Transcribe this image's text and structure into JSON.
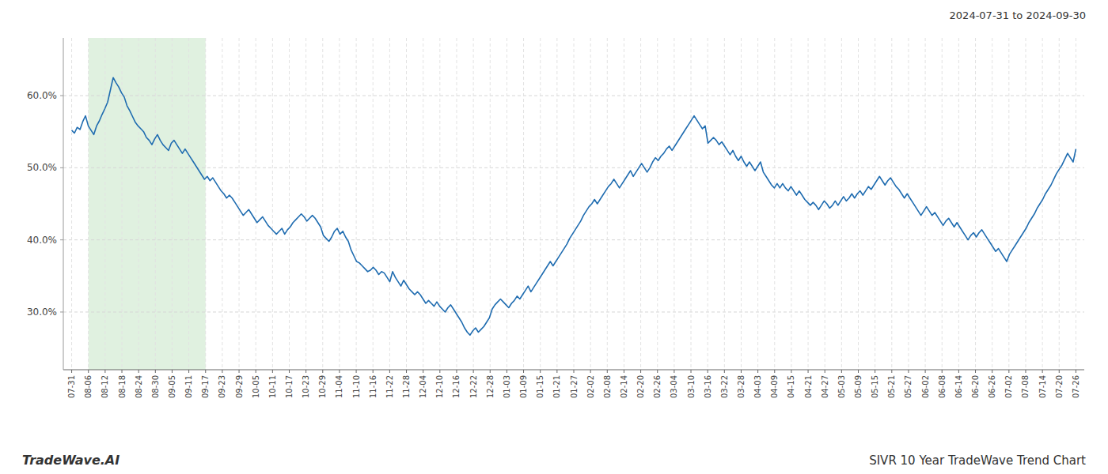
{
  "chart_data": {
    "type": "line",
    "title": "SIVR 10 Year TradeWave Trend Chart",
    "subtitle": "2024-07-31 to 2024-09-30",
    "annotations": [
      "TradeWave.AI"
    ],
    "color": "#1f6cb0",
    "grid": true,
    "shade": {
      "start": "08-06",
      "end": "09-17",
      "color": "#cce8cc"
    },
    "xlim": [
      -0.5,
      60.5
    ],
    "xticks": [
      {
        "value": 0,
        "label": "07-31"
      },
      {
        "value": 1,
        "label": "08-06"
      },
      {
        "value": 2,
        "label": "08-12"
      },
      {
        "value": 3,
        "label": "08-18"
      },
      {
        "value": 4,
        "label": "08-24"
      },
      {
        "value": 5,
        "label": "08-30"
      },
      {
        "value": 6,
        "label": "09-05"
      },
      {
        "value": 7,
        "label": "09-11"
      },
      {
        "value": 8,
        "label": "09-17"
      },
      {
        "value": 9,
        "label": "09-23"
      },
      {
        "value": 10,
        "label": "09-29"
      },
      {
        "value": 11,
        "label": "10-05"
      },
      {
        "value": 12,
        "label": "10-11"
      },
      {
        "value": 13,
        "label": "10-17"
      },
      {
        "value": 14,
        "label": "10-23"
      },
      {
        "value": 15,
        "label": "10-29"
      },
      {
        "value": 16,
        "label": "11-04"
      },
      {
        "value": 17,
        "label": "11-10"
      },
      {
        "value": 18,
        "label": "11-16"
      },
      {
        "value": 19,
        "label": "11-22"
      },
      {
        "value": 20,
        "label": "11-28"
      },
      {
        "value": 21,
        "label": "12-04"
      },
      {
        "value": 22,
        "label": "12-10"
      },
      {
        "value": 23,
        "label": "12-16"
      },
      {
        "value": 24,
        "label": "12-22"
      },
      {
        "value": 25,
        "label": "12-28"
      },
      {
        "value": 26,
        "label": "01-03"
      },
      {
        "value": 27,
        "label": "01-09"
      },
      {
        "value": 28,
        "label": "01-15"
      },
      {
        "value": 29,
        "label": "01-21"
      },
      {
        "value": 30,
        "label": "01-27"
      },
      {
        "value": 31,
        "label": "02-02"
      },
      {
        "value": 32,
        "label": "02-08"
      },
      {
        "value": 33,
        "label": "02-14"
      },
      {
        "value": 34,
        "label": "02-20"
      },
      {
        "value": 35,
        "label": "02-26"
      },
      {
        "value": 36,
        "label": "03-04"
      },
      {
        "value": 37,
        "label": "03-10"
      },
      {
        "value": 38,
        "label": "03-16"
      },
      {
        "value": 39,
        "label": "03-22"
      },
      {
        "value": 40,
        "label": "03-28"
      },
      {
        "value": 41,
        "label": "04-03"
      },
      {
        "value": 42,
        "label": "04-09"
      },
      {
        "value": 43,
        "label": "04-15"
      },
      {
        "value": 44,
        "label": "04-21"
      },
      {
        "value": 45,
        "label": "04-27"
      },
      {
        "value": 46,
        "label": "05-03"
      },
      {
        "value": 47,
        "label": "05-09"
      },
      {
        "value": 48,
        "label": "05-15"
      },
      {
        "value": 49,
        "label": "05-21"
      },
      {
        "value": 50,
        "label": "05-27"
      },
      {
        "value": 51,
        "label": "06-02"
      },
      {
        "value": 52,
        "label": "06-08"
      },
      {
        "value": 53,
        "label": "06-14"
      },
      {
        "value": 54,
        "label": "06-20"
      },
      {
        "value": 55,
        "label": "06-26"
      },
      {
        "value": 56,
        "label": "07-02"
      },
      {
        "value": 57,
        "label": "07-08"
      },
      {
        "value": 58,
        "label": "07-14"
      },
      {
        "value": 59,
        "label": "07-20"
      },
      {
        "value": 60,
        "label": "07-26"
      }
    ],
    "ylim": [
      22,
      68
    ],
    "yticks": [
      {
        "value": 30.0,
        "label": "30.0%"
      },
      {
        "value": 40.0,
        "label": "40.0%"
      },
      {
        "value": 50.0,
        "label": "50.0%"
      },
      {
        "value": 60.0,
        "label": "60.0%"
      }
    ],
    "values": [
      55.2,
      54.8,
      55.6,
      55.3,
      56.4,
      57.2,
      55.8,
      55.2,
      54.6,
      55.8,
      56.5,
      57.4,
      58.2,
      59.1,
      60.8,
      62.5,
      61.8,
      61.2,
      60.4,
      59.8,
      58.6,
      57.9,
      57.1,
      56.3,
      55.8,
      55.4,
      55.0,
      54.2,
      53.8,
      53.2,
      54.0,
      54.6,
      53.8,
      53.2,
      52.8,
      52.4,
      53.4,
      53.8,
      53.2,
      52.6,
      52.0,
      52.6,
      52.0,
      51.4,
      50.8,
      50.2,
      49.6,
      49.0,
      48.4,
      48.8,
      48.2,
      48.6,
      48.0,
      47.4,
      46.8,
      46.4,
      45.8,
      46.2,
      45.8,
      45.2,
      44.6,
      44.0,
      43.4,
      43.8,
      44.2,
      43.6,
      43.0,
      42.4,
      42.8,
      43.2,
      42.6,
      42.0,
      41.6,
      41.2,
      40.8,
      41.2,
      41.6,
      40.8,
      41.4,
      41.8,
      42.4,
      42.8,
      43.2,
      43.6,
      43.2,
      42.6,
      43.0,
      43.4,
      43.0,
      42.4,
      41.8,
      40.6,
      40.2,
      39.8,
      40.4,
      41.2,
      41.6,
      40.8,
      41.2,
      40.4,
      39.8,
      38.6,
      37.8,
      37.0,
      36.8,
      36.4,
      36.0,
      35.6,
      35.8,
      36.2,
      35.8,
      35.2,
      35.6,
      35.4,
      34.8,
      34.2,
      35.6,
      34.8,
      34.2,
      33.6,
      34.4,
      33.8,
      33.2,
      32.8,
      32.4,
      32.8,
      32.4,
      31.8,
      31.2,
      31.6,
      31.2,
      30.8,
      31.4,
      30.8,
      30.4,
      30.0,
      30.6,
      31.0,
      30.4,
      29.8,
      29.2,
      28.6,
      27.8,
      27.2,
      26.8,
      27.4,
      27.8,
      27.2,
      27.6,
      28.0,
      28.6,
      29.2,
      30.4,
      31.0,
      31.4,
      31.8,
      31.4,
      31.0,
      30.6,
      31.2,
      31.6,
      32.2,
      31.8,
      32.4,
      33.0,
      33.6,
      32.8,
      33.4,
      34.0,
      34.6,
      35.2,
      35.8,
      36.4,
      37.0,
      36.4,
      37.0,
      37.6,
      38.2,
      38.8,
      39.4,
      40.2,
      40.8,
      41.4,
      42.0,
      42.6,
      43.4,
      44.0,
      44.6,
      45.0,
      45.6,
      45.0,
      45.6,
      46.2,
      46.8,
      47.4,
      47.8,
      48.4,
      47.8,
      47.2,
      47.8,
      48.4,
      49.0,
      49.6,
      48.8,
      49.4,
      50.0,
      50.6,
      50.0,
      49.4,
      50.0,
      50.8,
      51.4,
      51.0,
      51.6,
      52.0,
      52.6,
      53.0,
      52.4,
      53.0,
      53.6,
      54.2,
      54.8,
      55.4,
      56.0,
      56.6,
      57.2,
      56.6,
      56.0,
      55.4,
      55.8,
      53.4,
      53.8,
      54.2,
      53.8,
      53.2,
      53.6,
      53.0,
      52.4,
      51.8,
      52.4,
      51.6,
      51.0,
      51.6,
      50.8,
      50.2,
      50.8,
      50.2,
      49.6,
      50.2,
      50.8,
      49.4,
      48.8,
      48.2,
      47.6,
      47.2,
      47.8,
      47.2,
      47.8,
      47.2,
      46.8,
      47.4,
      46.8,
      46.2,
      46.8,
      46.2,
      45.6,
      45.2,
      44.8,
      45.2,
      44.8,
      44.2,
      44.8,
      45.4,
      45.0,
      44.4,
      44.8,
      45.4,
      44.8,
      45.4,
      46.0,
      45.4,
      45.8,
      46.4,
      45.8,
      46.4,
      46.8,
      46.2,
      46.8,
      47.4,
      47.0,
      47.6,
      48.2,
      48.8,
      48.2,
      47.6,
      48.2,
      48.6,
      48.0,
      47.4,
      47.0,
      46.4,
      45.8,
      46.4,
      45.8,
      45.2,
      44.6,
      44.0,
      43.4,
      44.0,
      44.6,
      44.0,
      43.4,
      43.8,
      43.2,
      42.6,
      42.0,
      42.6,
      43.0,
      42.4,
      41.8,
      42.4,
      41.8,
      41.2,
      40.6,
      40.0,
      40.6,
      41.0,
      40.4,
      41.0,
      41.4,
      40.8,
      40.2,
      39.6,
      39.0,
      38.4,
      38.8,
      38.2,
      37.6,
      37.0,
      38.0,
      38.6,
      39.2,
      39.8,
      40.4,
      41.0,
      41.6,
      42.4,
      43.0,
      43.6,
      44.4,
      45.0,
      45.6,
      46.4,
      47.0,
      47.6,
      48.4,
      49.2,
      49.8,
      50.4,
      51.2,
      52.0,
      51.4,
      50.8,
      52.6
    ]
  }
}
